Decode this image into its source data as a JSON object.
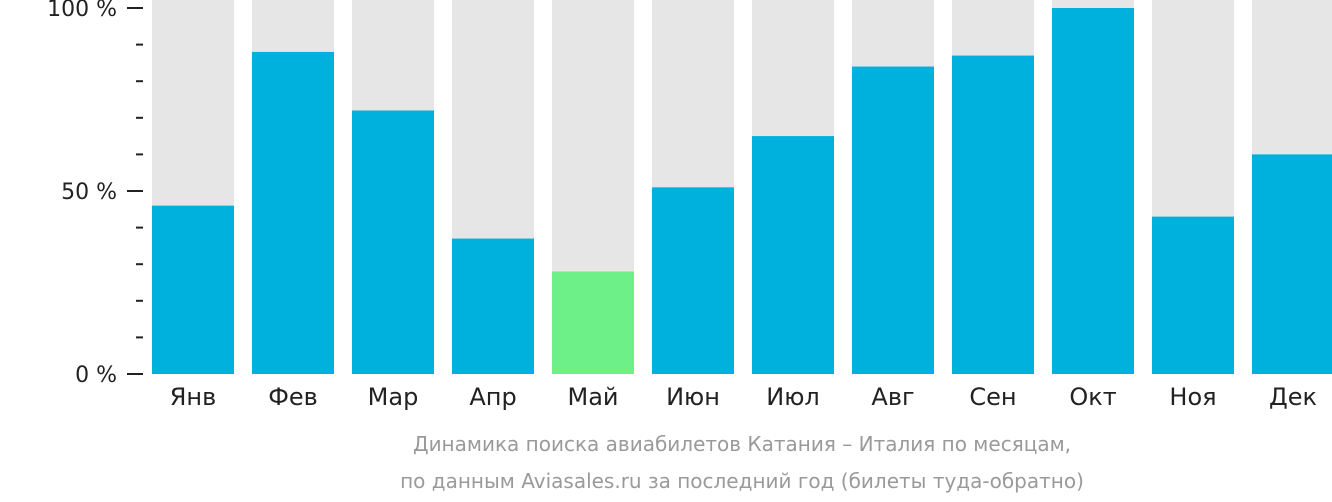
{
  "chart_data": {
    "type": "bar",
    "categories": [
      "Янв",
      "Фев",
      "Мар",
      "Апр",
      "Май",
      "Июн",
      "Июл",
      "Авг",
      "Сен",
      "Окт",
      "Ноя",
      "Дек"
    ],
    "values": [
      46,
      88,
      72,
      37,
      28,
      51,
      65,
      84,
      87,
      100,
      43,
      60
    ],
    "ylim": [
      0,
      100
    ],
    "y_ticks": [
      {
        "value": 0,
        "label": "0 %"
      },
      {
        "value": 50,
        "label": "50 %"
      },
      {
        "value": 100,
        "label": "100 %"
      }
    ],
    "y_minor_step": 10,
    "highlight_category": "Май",
    "colors": {
      "bar": "#00b0dd",
      "highlight": "#6cf087",
      "track": "#e6e6e6",
      "axis": "#222222",
      "caption": "#9a9a9a"
    },
    "caption_lines": [
      "Динамика поиска авиабилетов Катания – Италия по месяцам,",
      "по данным Aviasales.ru за последний год (билеты туда-обратно)"
    ]
  }
}
